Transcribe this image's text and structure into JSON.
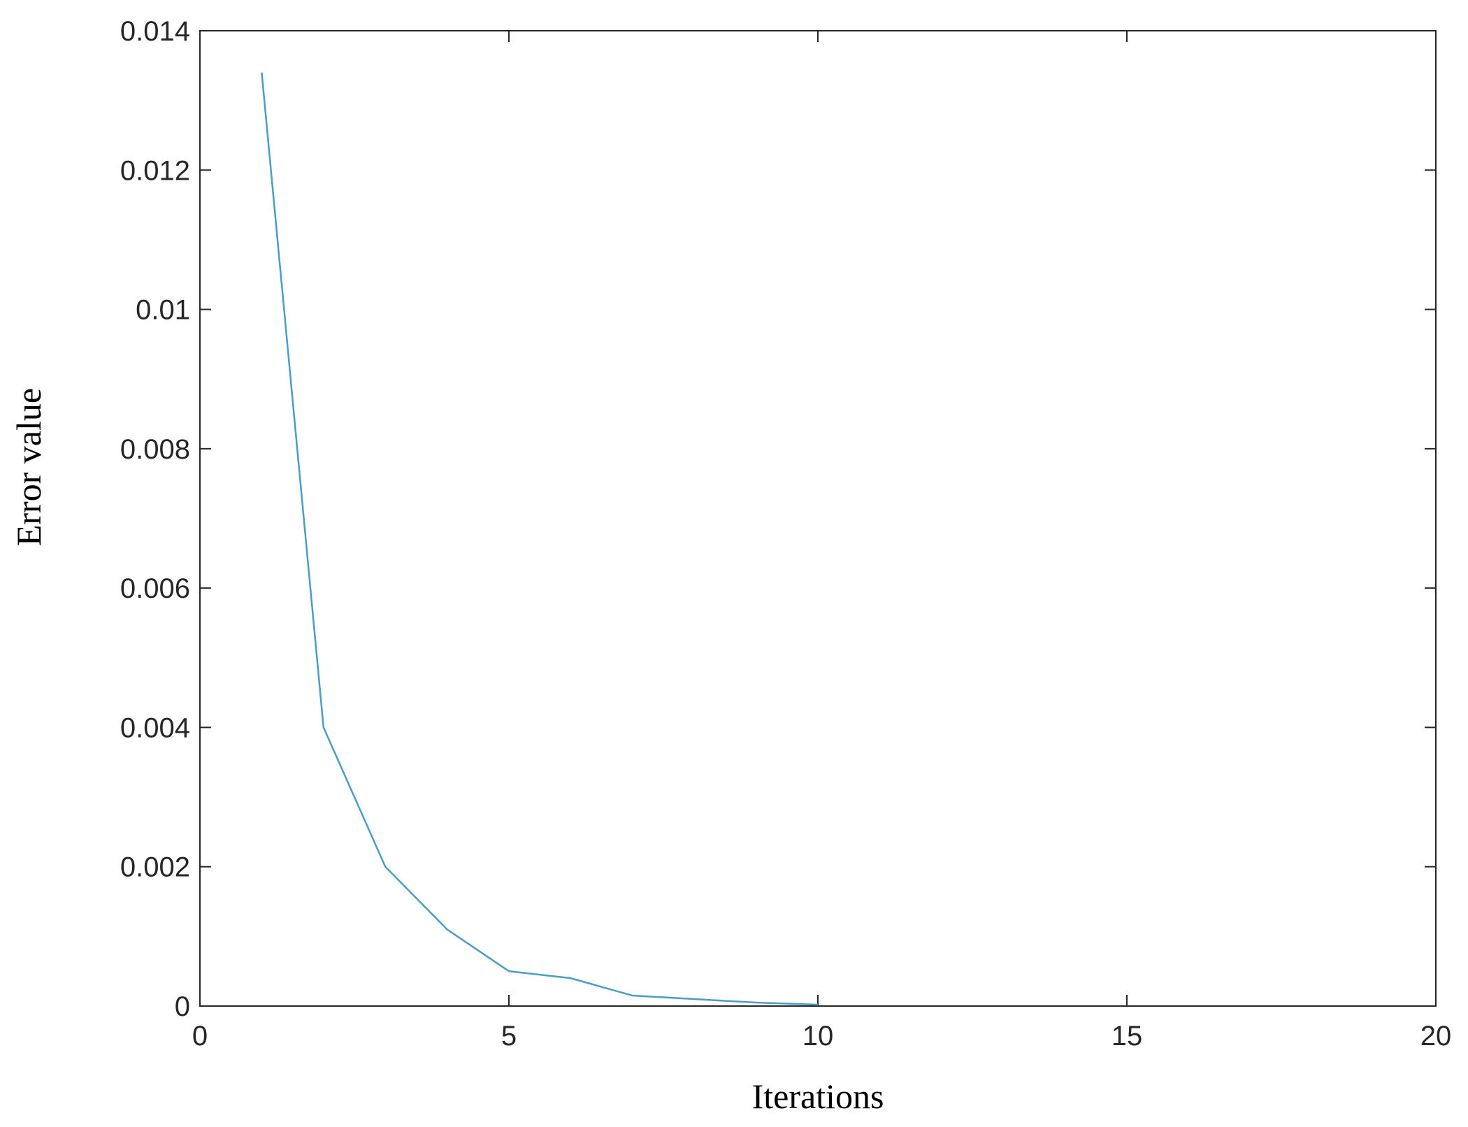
{
  "chart_data": {
    "type": "line",
    "x_label": "Iterations",
    "y_label": "Error value",
    "x": [
      1,
      2,
      3,
      4,
      5,
      6,
      7,
      8,
      9,
      10
    ],
    "values": [
      0.0134,
      0.004,
      0.002,
      0.0011,
      0.0005,
      0.0004,
      0.00015,
      0.0001,
      5e-05,
      2e-05
    ],
    "color": "#4a9cc9",
    "xlim": [
      0,
      20
    ],
    "xticks": [
      0,
      5,
      10,
      15,
      20
    ],
    "ylim": [
      0,
      0.014
    ],
    "yticks": [
      0,
      0.002,
      0.004,
      0.006,
      0.008,
      0.01,
      0.012,
      0.014
    ],
    "grid": false
  }
}
